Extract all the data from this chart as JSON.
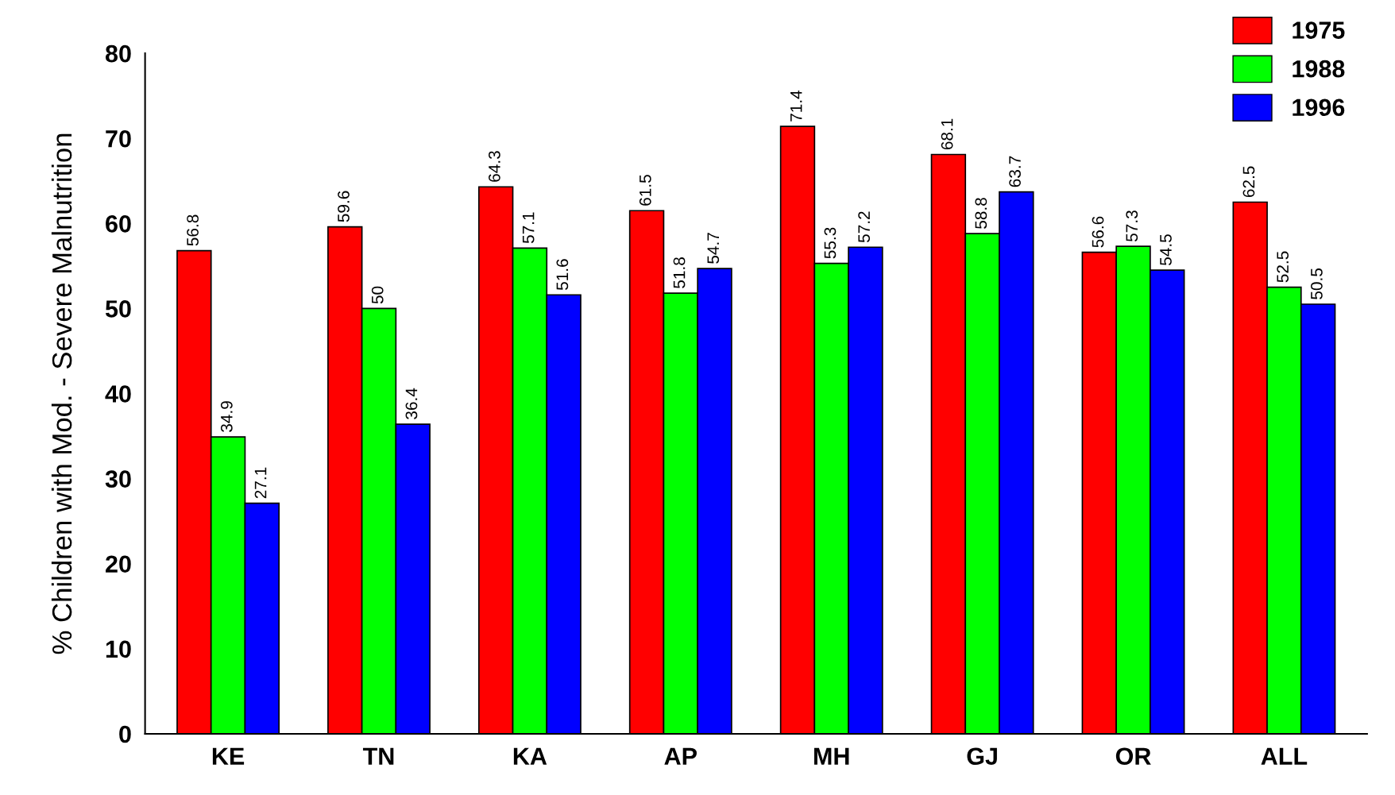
{
  "chart_data": {
    "type": "bar",
    "ylabel": "% Children with Mod. - Severe Malnutrition",
    "categories": [
      "KE",
      "TN",
      "KA",
      "AP",
      "MH",
      "GJ",
      "OR",
      "ALL"
    ],
    "series": [
      {
        "name": "1975",
        "color": "#ff0000",
        "values": [
          56.8,
          59.6,
          64.3,
          61.5,
          71.4,
          68.1,
          56.6,
          62.5
        ]
      },
      {
        "name": "1988",
        "color": "#00ff00",
        "values": [
          34.9,
          50,
          57.1,
          51.8,
          55.3,
          58.8,
          57.3,
          52.5
        ]
      },
      {
        "name": "1996",
        "color": "#0000ff",
        "values": [
          27.1,
          36.4,
          51.6,
          54.7,
          57.2,
          63.7,
          54.5,
          50.5
        ]
      }
    ],
    "ylim": [
      0,
      80
    ],
    "yticks": [
      0,
      10,
      20,
      30,
      40,
      50,
      60,
      70,
      80
    ],
    "data_labels": true,
    "grid": false,
    "legend": "top right"
  }
}
